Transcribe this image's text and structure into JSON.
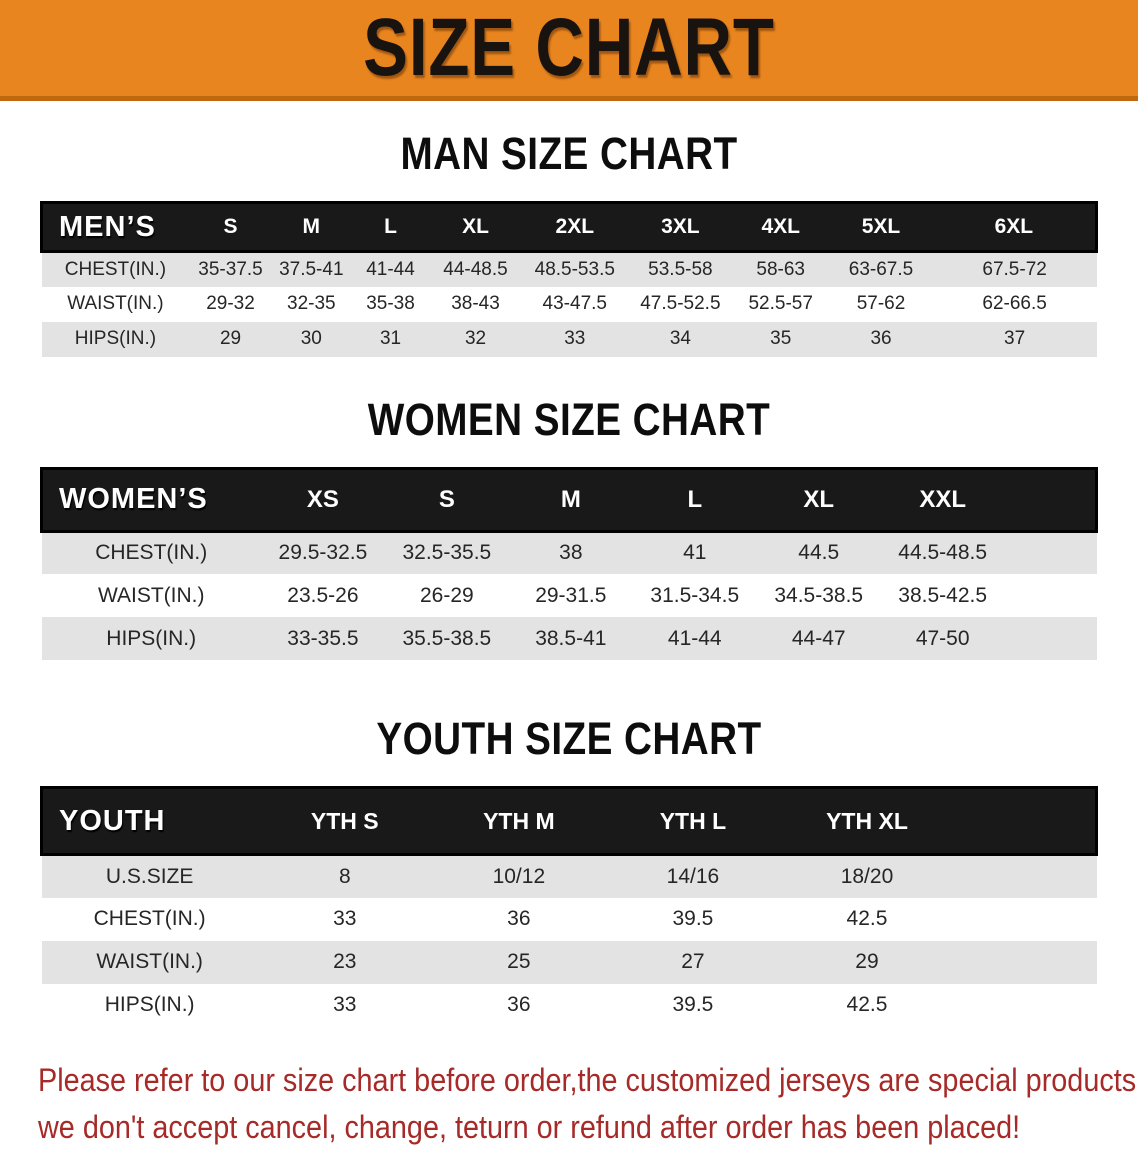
{
  "banner": {
    "title": "SIZE CHART",
    "bg_color": "#E9851F",
    "text_color": "#191310"
  },
  "sections": {
    "men": {
      "heading": "MAN SIZE CHART",
      "header_label": "MEN’S",
      "columns": [
        "S",
        "M",
        "L",
        "XL",
        "2XL",
        "3XL",
        "4XL",
        "5XL",
        "6XL"
      ],
      "rows": [
        {
          "label": "CHEST(IN.)",
          "values": [
            "35-37.5",
            "37.5-41",
            "41-44",
            "44-48.5",
            "48.5-53.5",
            "53.5-58",
            "58-63",
            "63-67.5",
            "67.5-72"
          ]
        },
        {
          "label": "WAIST(IN.)",
          "values": [
            "29-32",
            "32-35",
            "35-38",
            "38-43",
            "43-47.5",
            "47.5-52.5",
            "52.5-57",
            "57-62",
            "62-66.5"
          ]
        },
        {
          "label": "HIPS(IN.)",
          "values": [
            "29",
            "30",
            "31",
            "32",
            "33",
            "34",
            "35",
            "36",
            "37"
          ]
        }
      ]
    },
    "women": {
      "heading": "WOMEN SIZE CHART",
      "header_label": "WOMEN’S",
      "columns": [
        "XS",
        "S",
        "M",
        "L",
        "XL",
        "XXL"
      ],
      "rows": [
        {
          "label": "CHEST(IN.)",
          "values": [
            "29.5-32.5",
            "32.5-35.5",
            "38",
            "41",
            "44.5",
            "44.5-48.5"
          ]
        },
        {
          "label": "WAIST(IN.)",
          "values": [
            "23.5-26",
            "26-29",
            "29-31.5",
            "31.5-34.5",
            "34.5-38.5",
            "38.5-42.5"
          ]
        },
        {
          "label": "HIPS(IN.)",
          "values": [
            "33-35.5",
            "35.5-38.5",
            "38.5-41",
            "41-44",
            "44-47",
            "47-50"
          ]
        }
      ]
    },
    "youth": {
      "heading": "YOUTH SIZE CHART",
      "header_label": "YOUTH",
      "columns": [
        "YTH S",
        "YTH M",
        "YTH L",
        "YTH XL"
      ],
      "rows": [
        {
          "label": "U.S.SIZE",
          "values": [
            "8",
            "10/12",
            "14/16",
            "18/20"
          ]
        },
        {
          "label": "CHEST(IN.)",
          "values": [
            "33",
            "36",
            "39.5",
            "42.5"
          ]
        },
        {
          "label": "WAIST(IN.)",
          "values": [
            "23",
            "25",
            "27",
            "29"
          ]
        },
        {
          "label": "HIPS(IN.)",
          "values": [
            "33",
            "36",
            "39.5",
            "42.5"
          ]
        }
      ]
    }
  },
  "footer": {
    "line1": "Please refer to our size chart before order,the customized jerseys are special products,",
    "line2": "we don't accept cancel, change, teturn or refund after order has been placed!",
    "text_color": "#A62B28"
  },
  "colors": {
    "banner_orange": "#E9851F",
    "banner_shadow": "#BF690F",
    "table_header_black": "#191919",
    "stripe_gray": "#E3E3E3",
    "notice_red": "#A62B28"
  }
}
